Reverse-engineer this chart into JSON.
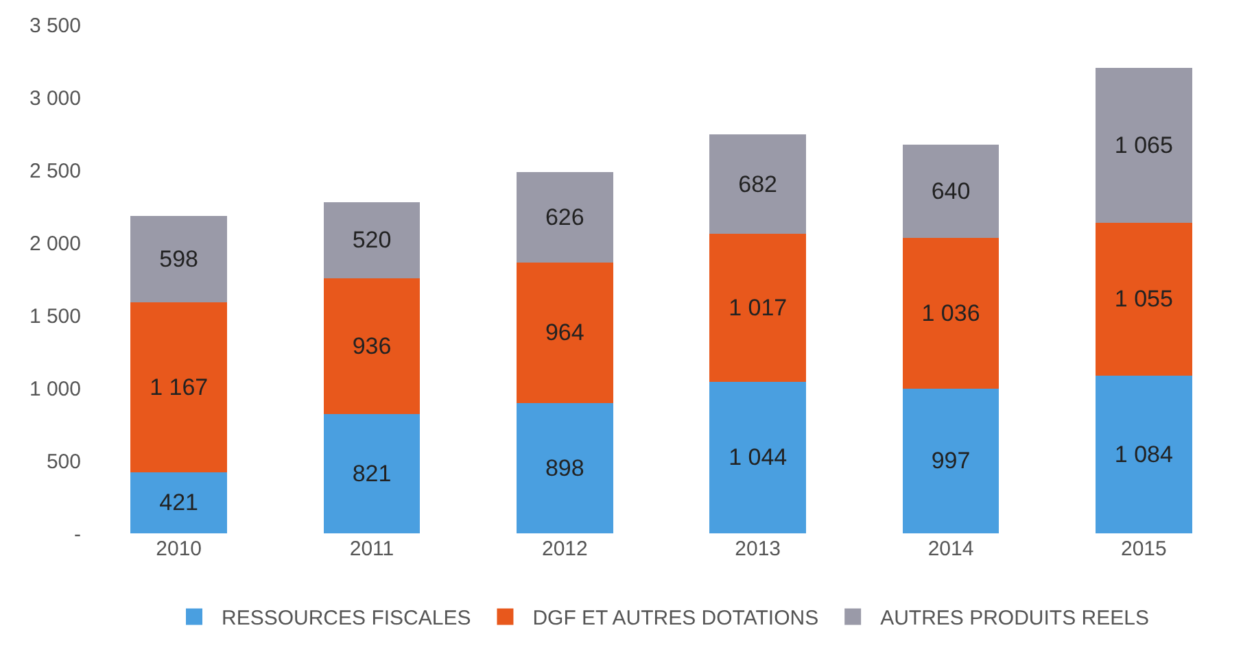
{
  "chart_data": {
    "type": "bar",
    "stacked": true,
    "categories": [
      "2010",
      "2011",
      "2012",
      "2013",
      "2014",
      "2015"
    ],
    "series": [
      {
        "name": "RESSOURCES FISCALES",
        "color": "#4a9fe0",
        "values": [
          421,
          821,
          898,
          1044,
          997,
          1084
        ],
        "value_labels": [
          "421",
          "821",
          "898",
          "1 044",
          "997",
          "1 084"
        ]
      },
      {
        "name": "DGF ET AUTRES DOTATIONS",
        "color": "#e8581c",
        "values": [
          1167,
          936,
          964,
          1017,
          1036,
          1055
        ],
        "value_labels": [
          "1 167",
          "936",
          "964",
          "1 017",
          "1 036",
          "1 055"
        ]
      },
      {
        "name": "AUTRES PRODUITS REELS",
        "color": "#9a9aa8",
        "values": [
          598,
          520,
          626,
          682,
          640,
          1065
        ],
        "value_labels": [
          "598",
          "520",
          "626",
          "682",
          "640",
          "1 065"
        ]
      }
    ],
    "ylim": [
      0,
      3500
    ],
    "yticks": [
      {
        "value": 0,
        "label": "-"
      },
      500,
      {
        "value": 1000,
        "label": "1 000"
      },
      {
        "value": 1500,
        "label": "1 500"
      },
      {
        "value": 2000,
        "label": "2 000"
      },
      {
        "value": 2500,
        "label": "2 500"
      },
      {
        "value": 3000,
        "label": "3 000"
      },
      {
        "value": 3500,
        "label": "3 500"
      }
    ],
    "grid": false,
    "legend": "bottom"
  }
}
